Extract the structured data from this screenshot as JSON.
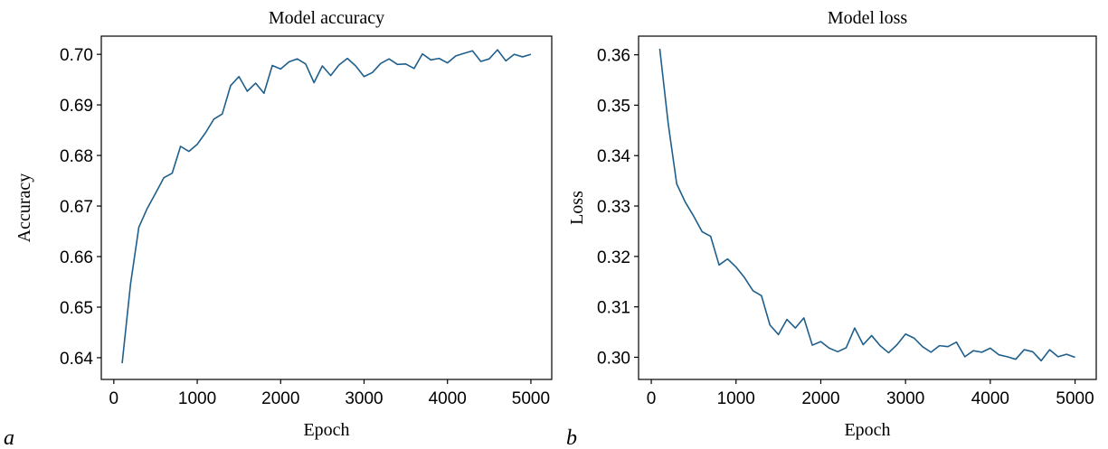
{
  "chart_data": [
    {
      "type": "line",
      "panel_label": "a",
      "title": "Model accuracy",
      "xlabel": "Epoch",
      "ylabel": "Accuracy",
      "xlim": [
        -150,
        5250
      ],
      "ylim": [
        0.6357,
        0.7036
      ],
      "xticks": [
        0,
        1000,
        2000,
        3000,
        4000,
        5000
      ],
      "xtick_labels": [
        "0",
        "1000",
        "2000",
        "3000",
        "4000",
        "5000"
      ],
      "yticks": [
        0.64,
        0.65,
        0.66,
        0.67,
        0.68,
        0.69,
        0.7
      ],
      "ytick_labels": [
        "0.64",
        "0.65",
        "0.66",
        "0.67",
        "0.68",
        "0.69",
        "0.70"
      ],
      "grid": false,
      "color": "#1f5f8b",
      "x": [
        100,
        200,
        300,
        400,
        500,
        600,
        700,
        800,
        900,
        1000,
        1100,
        1200,
        1300,
        1400,
        1500,
        1600,
        1700,
        1800,
        1900,
        2000,
        2100,
        2200,
        2300,
        2400,
        2500,
        2600,
        2700,
        2800,
        2900,
        3000,
        3100,
        3200,
        3300,
        3400,
        3500,
        3600,
        3700,
        3800,
        3900,
        4000,
        4100,
        4200,
        4300,
        4400,
        4500,
        4600,
        4700,
        4800,
        4900,
        5000
      ],
      "y": [
        0.6389,
        0.6545,
        0.6658,
        0.6695,
        0.6725,
        0.6756,
        0.6765,
        0.6818,
        0.6808,
        0.6822,
        0.6845,
        0.6872,
        0.6882,
        0.6938,
        0.6956,
        0.6927,
        0.6943,
        0.6923,
        0.6978,
        0.6971,
        0.6985,
        0.6991,
        0.6981,
        0.6944,
        0.6977,
        0.6958,
        0.6979,
        0.6992,
        0.6977,
        0.6956,
        0.6964,
        0.6982,
        0.6991,
        0.698,
        0.6981,
        0.6972,
        0.7001,
        0.6989,
        0.6992,
        0.6983,
        0.6997,
        0.7002,
        0.7007,
        0.6986,
        0.6991,
        0.7009,
        0.6987,
        0.7,
        0.6995,
        0.7
      ]
    },
    {
      "type": "line",
      "panel_label": "b",
      "title": "Model loss",
      "xlabel": "Epoch",
      "ylabel": "Loss",
      "xlim": [
        -150,
        5250
      ],
      "ylim": [
        0.2956,
        0.3637
      ],
      "xticks": [
        0,
        1000,
        2000,
        3000,
        4000,
        5000
      ],
      "xtick_labels": [
        "0",
        "1000",
        "2000",
        "3000",
        "4000",
        "5000"
      ],
      "yticks": [
        0.3,
        0.31,
        0.32,
        0.33,
        0.34,
        0.35,
        0.36
      ],
      "ytick_labels": [
        "0.30",
        "0.31",
        "0.32",
        "0.33",
        "0.34",
        "0.35",
        "0.36"
      ],
      "grid": false,
      "color": "#1f5f8b",
      "x": [
        100,
        200,
        300,
        400,
        500,
        600,
        700,
        800,
        900,
        1000,
        1100,
        1200,
        1300,
        1400,
        1500,
        1600,
        1700,
        1800,
        1900,
        2000,
        2100,
        2200,
        2300,
        2400,
        2500,
        2600,
        2700,
        2800,
        2900,
        3000,
        3100,
        3200,
        3300,
        3400,
        3500,
        3600,
        3700,
        3800,
        3900,
        4000,
        4100,
        4200,
        4300,
        4400,
        4500,
        4600,
        4700,
        4800,
        4900,
        5000
      ],
      "y": [
        0.3612,
        0.3463,
        0.3344,
        0.3308,
        0.328,
        0.3249,
        0.324,
        0.3183,
        0.3195,
        0.3179,
        0.3158,
        0.3132,
        0.3122,
        0.3064,
        0.3045,
        0.3075,
        0.3058,
        0.3078,
        0.3024,
        0.3031,
        0.3018,
        0.3011,
        0.3019,
        0.3058,
        0.3025,
        0.3043,
        0.3023,
        0.3009,
        0.3025,
        0.3046,
        0.3038,
        0.3021,
        0.301,
        0.3023,
        0.3021,
        0.303,
        0.3001,
        0.3013,
        0.301,
        0.3018,
        0.3005,
        0.3001,
        0.2996,
        0.3015,
        0.3011,
        0.2993,
        0.3015,
        0.3001,
        0.3006,
        0.3
      ]
    }
  ]
}
